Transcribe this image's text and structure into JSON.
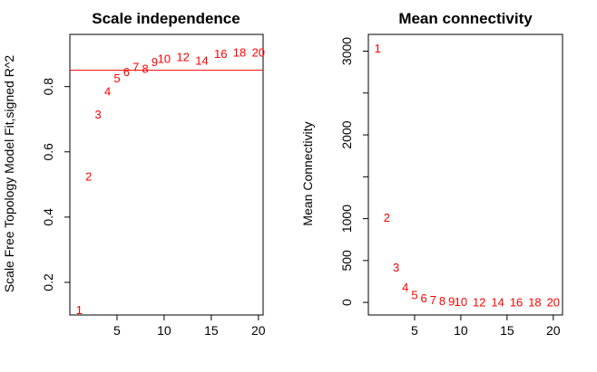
{
  "chart_data": [
    {
      "type": "scatter",
      "title": "Scale independence",
      "xlabel": "",
      "ylabel": "Scale Free Topology Model Fit,signed R^2",
      "xlim": [
        0,
        20.5
      ],
      "ylim": [
        0.1,
        0.96
      ],
      "xticks": [
        5,
        10,
        15,
        20
      ],
      "yticks": [
        0.2,
        0.4,
        0.6,
        0.8
      ],
      "marker": "text-labels",
      "point_color": "#ff0000",
      "points": [
        {
          "label": "1",
          "x": 1,
          "y": 0.115
        },
        {
          "label": "2",
          "x": 2,
          "y": 0.525
        },
        {
          "label": "3",
          "x": 3,
          "y": 0.715
        },
        {
          "label": "4",
          "x": 4,
          "y": 0.785
        },
        {
          "label": "5",
          "x": 5,
          "y": 0.825
        },
        {
          "label": "6",
          "x": 6,
          "y": 0.845
        },
        {
          "label": "7",
          "x": 7,
          "y": 0.86
        },
        {
          "label": "8",
          "x": 8,
          "y": 0.855
        },
        {
          "label": "9",
          "x": 9,
          "y": 0.875
        },
        {
          "label": "10",
          "x": 10,
          "y": 0.885
        },
        {
          "label": "12",
          "x": 12,
          "y": 0.89
        },
        {
          "label": "14",
          "x": 14,
          "y": 0.88
        },
        {
          "label": "16",
          "x": 16,
          "y": 0.9
        },
        {
          "label": "18",
          "x": 18,
          "y": 0.905
        },
        {
          "label": "20",
          "x": 20,
          "y": 0.905
        }
      ],
      "hline": {
        "y": 0.85,
        "color": "#ff0000"
      }
    },
    {
      "type": "scatter",
      "title": "Mean connectivity",
      "xlabel": "",
      "ylabel": "Mean Connectivity",
      "xlim": [
        0,
        21
      ],
      "ylim": [
        -150,
        3200
      ],
      "xticks": [
        5,
        10,
        15,
        20
      ],
      "yticks": [
        0,
        500,
        1000,
        2000,
        3000
      ],
      "ytick_labels": [
        "0",
        "500",
        "1000",
        "2000",
        "3000"
      ],
      "minor_yticks": [
        1500,
        2500
      ],
      "marker": "text-labels",
      "point_color": "#ff0000",
      "points": [
        {
          "label": "1",
          "x": 1,
          "y": 3030
        },
        {
          "label": "2",
          "x": 2,
          "y": 1010
        },
        {
          "label": "3",
          "x": 3,
          "y": 420
        },
        {
          "label": "4",
          "x": 4,
          "y": 180
        },
        {
          "label": "5",
          "x": 5,
          "y": 90
        },
        {
          "label": "6",
          "x": 6,
          "y": 50
        },
        {
          "label": "7",
          "x": 7,
          "y": 30
        },
        {
          "label": "8",
          "x": 8,
          "y": 20
        },
        {
          "label": "9",
          "x": 9,
          "y": 10
        },
        {
          "label": "10",
          "x": 10,
          "y": 5
        },
        {
          "label": "12",
          "x": 12,
          "y": 3
        },
        {
          "label": "14",
          "x": 14,
          "y": 2
        },
        {
          "label": "16",
          "x": 16,
          "y": 1
        },
        {
          "label": "18",
          "x": 18,
          "y": 1
        },
        {
          "label": "20",
          "x": 20,
          "y": 0
        }
      ]
    }
  ]
}
